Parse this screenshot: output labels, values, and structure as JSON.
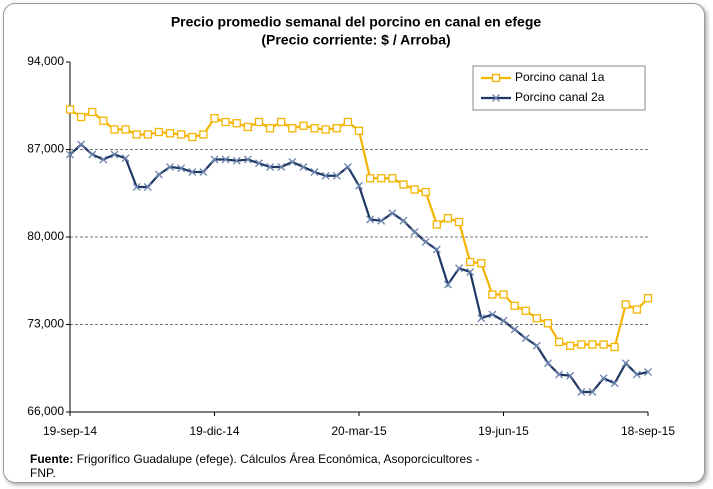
{
  "chart_data": {
    "type": "line",
    "title": "Precio promedio semanal del porcino en canal en efege",
    "subtitle": "(Precio corriente: $ / Arroba)",
    "categories": [
      "19-sep-14",
      null,
      null,
      null,
      null,
      null,
      null,
      null,
      null,
      null,
      null,
      null,
      null,
      "19-dic-14",
      null,
      null,
      null,
      null,
      null,
      null,
      null,
      null,
      null,
      null,
      null,
      null,
      "20-mar-15",
      null,
      null,
      null,
      null,
      null,
      null,
      null,
      null,
      null,
      null,
      null,
      null,
      "19-jun-15",
      null,
      null,
      null,
      null,
      null,
      null,
      null,
      null,
      null,
      null,
      null,
      null,
      "18-sep-15"
    ],
    "series": [
      {
        "name": "Porcino canal 1a",
        "color": "#f5b400",
        "marker": "square",
        "values": [
          90200,
          89600,
          90000,
          89300,
          88600,
          88600,
          88200,
          88200,
          88400,
          88300,
          88200,
          88000,
          88200,
          89500,
          89200,
          89100,
          88800,
          89200,
          88700,
          89200,
          88700,
          88900,
          88700,
          88600,
          88700,
          89200,
          88500,
          84700,
          84700,
          84700,
          84200,
          83800,
          83600,
          81000,
          81500,
          81200,
          78000,
          77900,
          75400,
          75400,
          74500,
          74100,
          73500,
          73100,
          71600,
          71300,
          71400,
          71400,
          71400,
          71200,
          74600,
          74200,
          75100
        ]
      },
      {
        "name": "Porcino canal 2a",
        "color": "#1f3864",
        "marker": "x",
        "values": [
          86600,
          87400,
          86600,
          86200,
          86600,
          86300,
          84000,
          84000,
          85000,
          85600,
          85500,
          85200,
          85200,
          86200,
          86200,
          86100,
          86200,
          85900,
          85600,
          85600,
          86000,
          85600,
          85200,
          84900,
          84900,
          85600,
          84100,
          81400,
          81300,
          81900,
          81300,
          80400,
          79600,
          79000,
          76200,
          77500,
          77200,
          73500,
          73800,
          73300,
          72600,
          71900,
          71300,
          69900,
          69000,
          68900,
          67600,
          67600,
          68700,
          68300,
          69900,
          69000,
          69200
        ]
      }
    ],
    "ylim": [
      66000,
      94000
    ],
    "yticks": [
      {
        "value": 66000,
        "label": "66,000"
      },
      {
        "value": 73000,
        "label": "73,000"
      },
      {
        "value": 80000,
        "label": "80,000"
      },
      {
        "value": 87000,
        "label": "87,000"
      },
      {
        "value": 94000,
        "label": "94,000"
      }
    ],
    "grid": true,
    "legend": "top-right",
    "source_label": "Fuente:",
    "source": "Frigorífico Guadalupe (efege). Cálculos Área Económica, Asoporcicultores - FNP."
  }
}
